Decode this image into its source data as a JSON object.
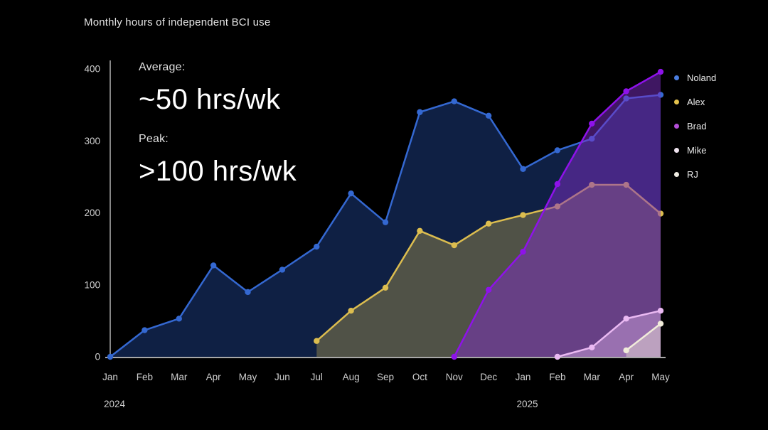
{
  "title": "Monthly hours of independent BCI use",
  "chart_data": {
    "type": "area",
    "title": "Monthly hours of independent BCI use",
    "xlabel": "",
    "ylabel": "",
    "ylim": [
      0,
      400
    ],
    "yticks": [
      0,
      100,
      200,
      300,
      400
    ],
    "grid": false,
    "legend_position": "right",
    "categories": [
      "Jan",
      "Feb",
      "Mar",
      "Apr",
      "May",
      "Jun",
      "Jul",
      "Aug",
      "Sep",
      "Oct",
      "Nov",
      "Dec",
      "Jan",
      "Feb",
      "Mar",
      "Apr",
      "May"
    ],
    "year_labels": [
      {
        "label": "2024",
        "index": 0
      },
      {
        "label": "2025",
        "index": 12
      }
    ],
    "series": [
      {
        "name": "Noland",
        "line_color": "#3468d1",
        "legend_dot": "#4a7de0",
        "fill_color": "rgba(48,98,210,0.32)",
        "values": [
          0,
          37,
          53,
          127,
          90,
          121,
          153,
          227,
          187,
          340,
          355,
          335,
          261,
          287,
          303,
          359,
          364
        ]
      },
      {
        "name": "Alex",
        "line_color": "#dcbd4f",
        "legend_dot": "#e3c24d",
        "fill_color": "rgba(214,184,80,0.33)",
        "values": [
          null,
          null,
          null,
          null,
          null,
          null,
          22,
          64,
          96,
          175,
          155,
          185,
          197,
          209,
          239,
          239,
          199
        ]
      },
      {
        "name": "Brad",
        "line_color": "#8e12ea",
        "legend_dot": "#b44fd8",
        "fill_color": "rgba(125,45,195,0.5)",
        "values": [
          null,
          null,
          null,
          null,
          null,
          null,
          null,
          null,
          null,
          null,
          0,
          93,
          146,
          240,
          324,
          369,
          396
        ]
      },
      {
        "name": "Mike",
        "line_color": "#eab9f2",
        "legend_dot": "#efe3ef",
        "fill_color": "rgba(230,185,240,0.4)",
        "values": [
          null,
          null,
          null,
          null,
          null,
          null,
          null,
          null,
          null,
          null,
          null,
          null,
          null,
          0,
          13,
          53,
          64
        ]
      },
      {
        "name": "RJ",
        "line_color": "#f1ecda",
        "legend_dot": "#eeebe2",
        "fill_color": "rgba(240,234,215,0.4)",
        "values": [
          null,
          null,
          null,
          null,
          null,
          null,
          null,
          null,
          null,
          null,
          null,
          null,
          null,
          null,
          null,
          9,
          46
        ]
      }
    ],
    "annotations": [
      {
        "label": "Average:",
        "value": "~50 hrs/wk"
      },
      {
        "label": "Peak:",
        "value": ">100 hrs/wk"
      }
    ],
    "axis_color": "#a8a8a8",
    "tick_label_color": "#cfcfcf",
    "background_color": "#000000"
  }
}
